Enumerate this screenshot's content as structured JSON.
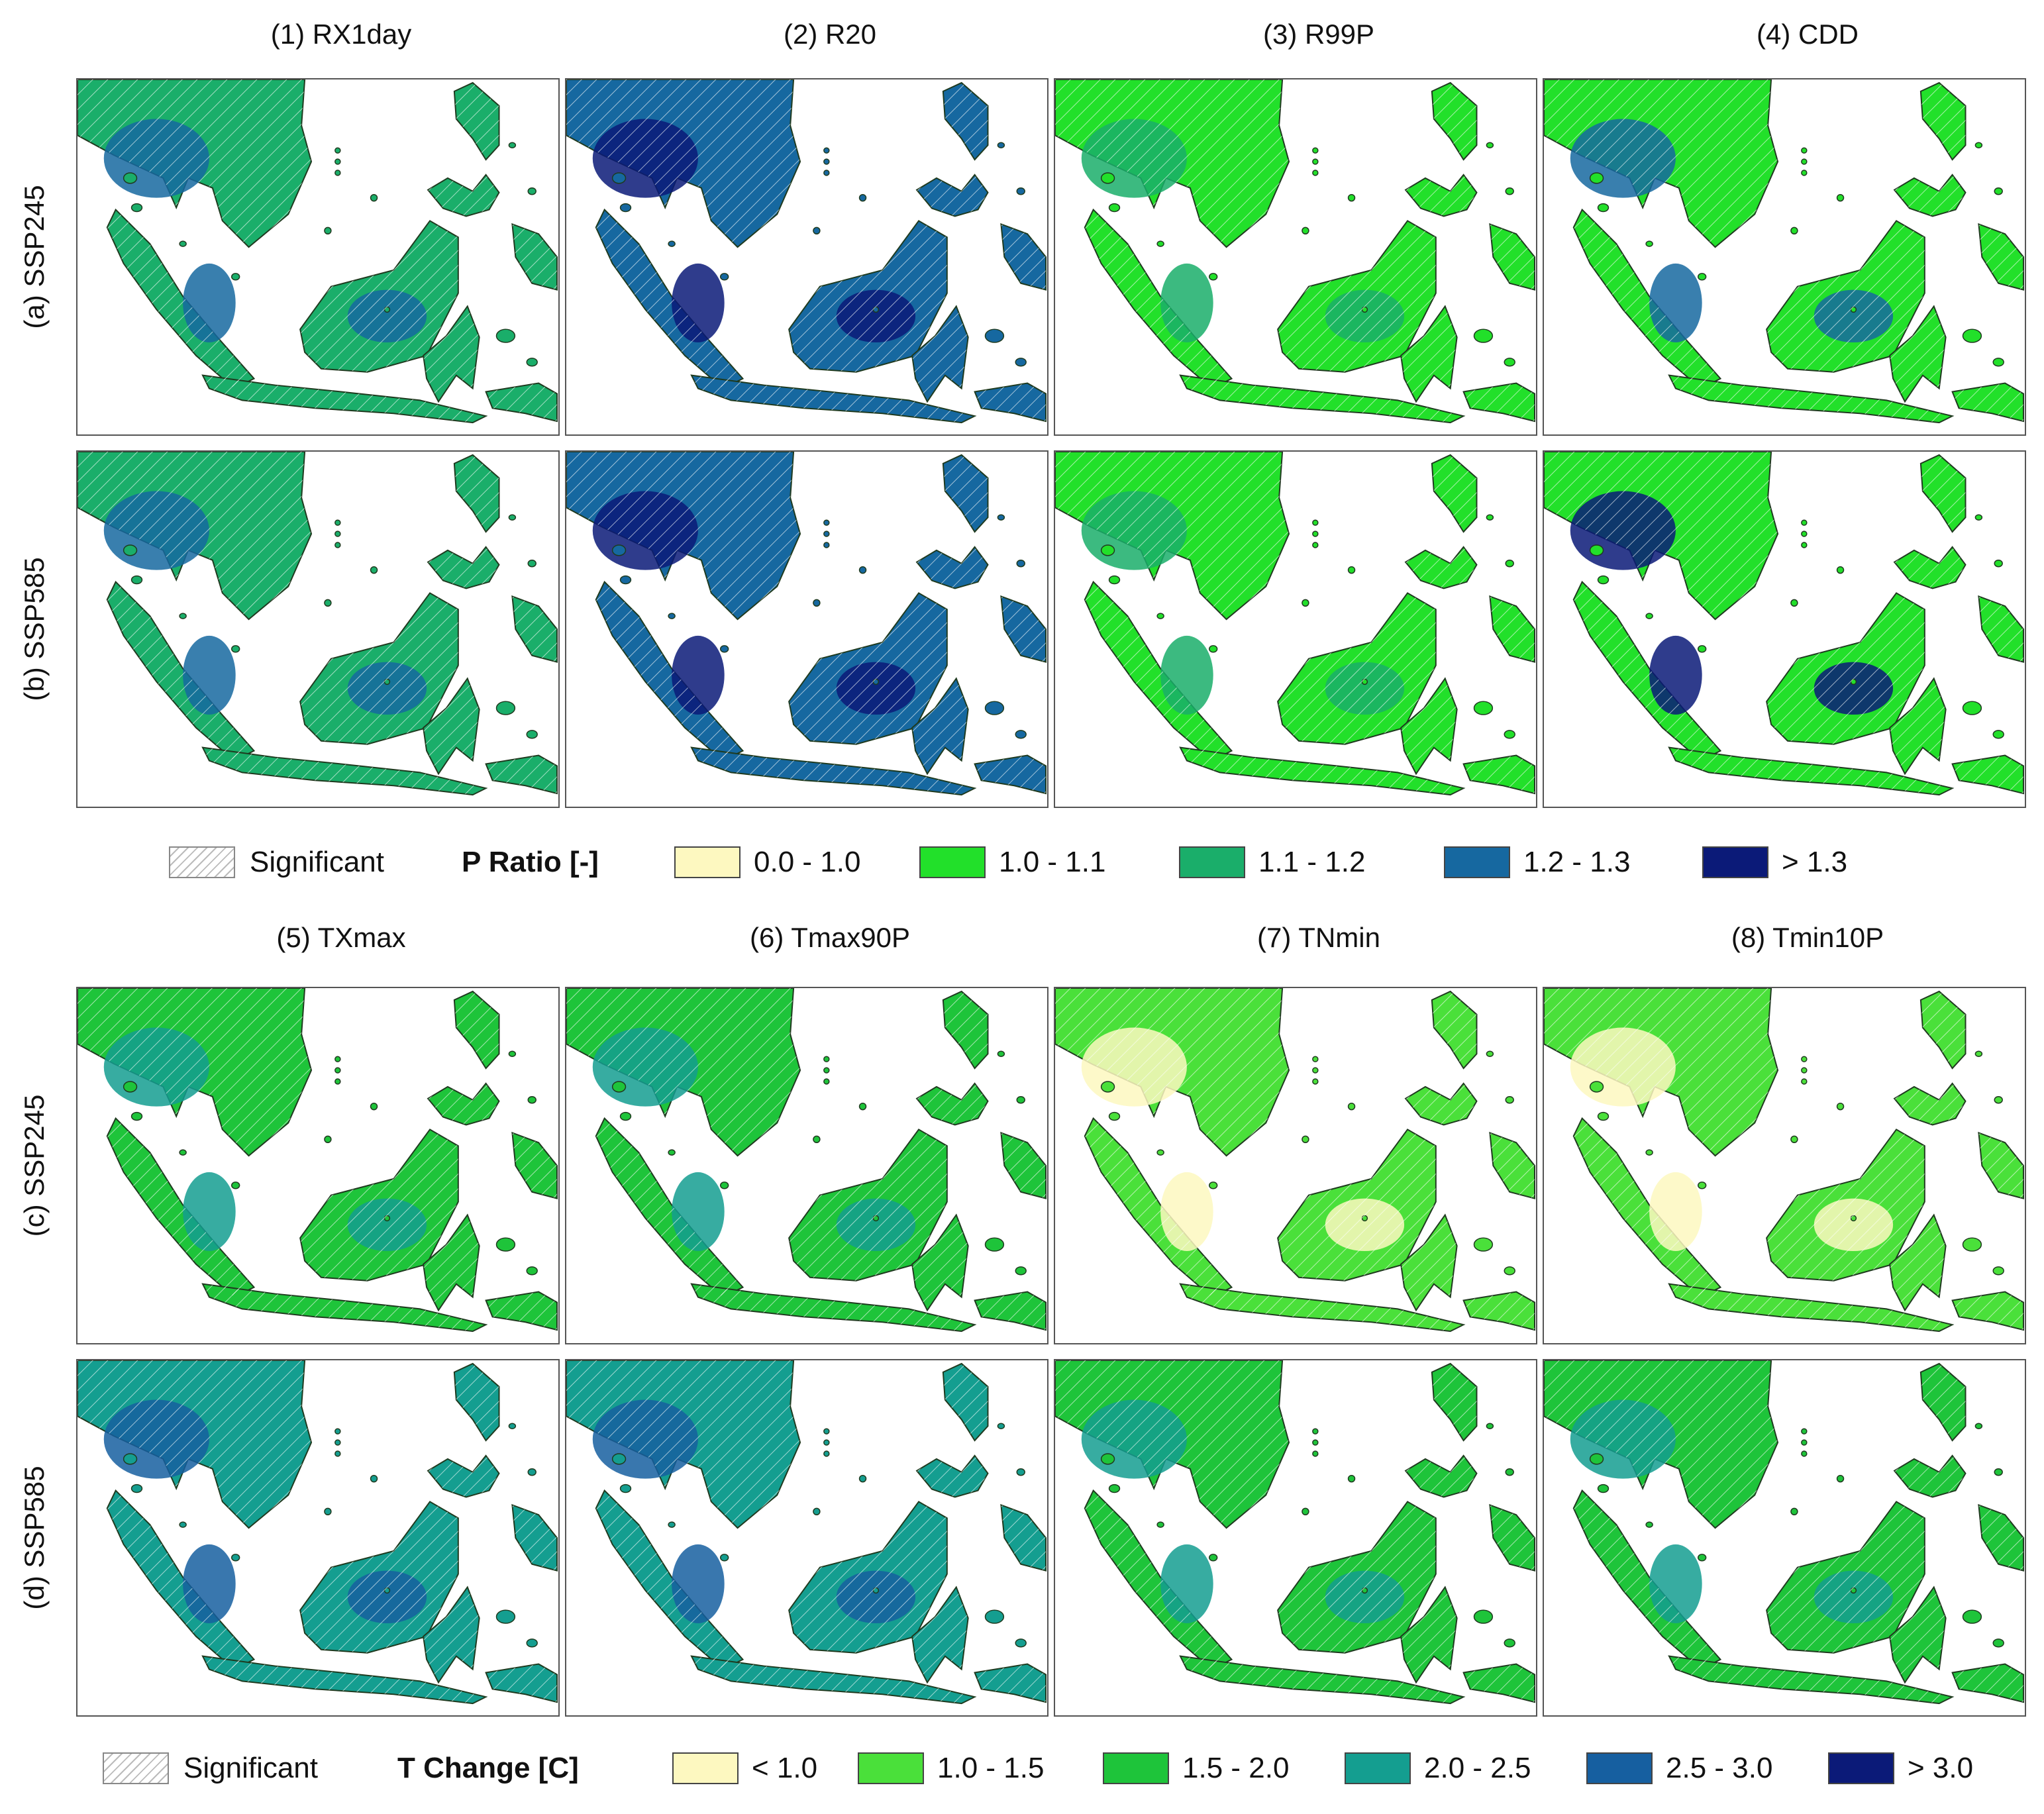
{
  "top": {
    "columns": [
      "(1) RX1day",
      "(2) R20",
      "(3) R99P",
      "(4) CDD"
    ],
    "rows": [
      "(a) SSP245",
      "(b) SSP585"
    ],
    "legend": {
      "significant_label": "Significant",
      "title": "P Ratio [-]",
      "classes": [
        {
          "label": "0.0 - 1.0",
          "color": "#fdf8c0"
        },
        {
          "label": "1.0 - 1.1",
          "color": "#22e02a"
        },
        {
          "label": "1.1 - 1.2",
          "color": "#1aae6a"
        },
        {
          "label": "1.2 - 1.3",
          "color": "#1668a0"
        },
        {
          "label": "> 1.3",
          "color": "#0b1a78"
        }
      ]
    }
  },
  "bottom": {
    "columns": [
      "(5) TXmax",
      "(6) Tmax90P",
      "(7) TNmin",
      "(8) Tmin10P"
    ],
    "rows": [
      "(c) SSP245",
      "(d) SSP585"
    ],
    "legend": {
      "significant_label": "Significant",
      "title": "T Change [C]",
      "classes": [
        {
          "label": "< 1.0",
          "color": "#fdf8c0"
        },
        {
          "label": "1.0 - 1.5",
          "color": "#4ae03a"
        },
        {
          "label": "1.5 - 2.0",
          "color": "#1ec43a"
        },
        {
          "label": "2.0 - 2.5",
          "color": "#149e90"
        },
        {
          "label": "2.5 - 3.0",
          "color": "#165fa0"
        },
        {
          "label": "> 3.0",
          "color": "#0b1a78"
        }
      ]
    }
  },
  "panels": {
    "a1": {
      "base": "#1aae6a",
      "accent": "#1668a0"
    },
    "a2": {
      "base": "#1668a0",
      "accent": "#0b1a78"
    },
    "a3": {
      "base": "#22e02a",
      "accent": "#1aae6a"
    },
    "a4": {
      "base": "#22e02a",
      "accent": "#1668a0"
    },
    "b1": {
      "base": "#1aae6a",
      "accent": "#1668a0"
    },
    "b2": {
      "base": "#1668a0",
      "accent": "#0b1a78"
    },
    "b3": {
      "base": "#22e02a",
      "accent": "#1aae6a"
    },
    "b4": {
      "base": "#22e02a",
      "accent": "#0b1a78"
    },
    "c1": {
      "base": "#1ec43a",
      "accent": "#149e90"
    },
    "c2": {
      "base": "#1ec43a",
      "accent": "#149e90"
    },
    "c3": {
      "base": "#4ae03a",
      "accent": "#fdf8c0"
    },
    "c4": {
      "base": "#4ae03a",
      "accent": "#fdf8c0"
    },
    "d1": {
      "base": "#149e90",
      "accent": "#165fa0"
    },
    "d2": {
      "base": "#149e90",
      "accent": "#165fa0"
    },
    "d3": {
      "base": "#1ec43a",
      "accent": "#149e90"
    },
    "d4": {
      "base": "#1ec43a",
      "accent": "#149e90"
    }
  }
}
